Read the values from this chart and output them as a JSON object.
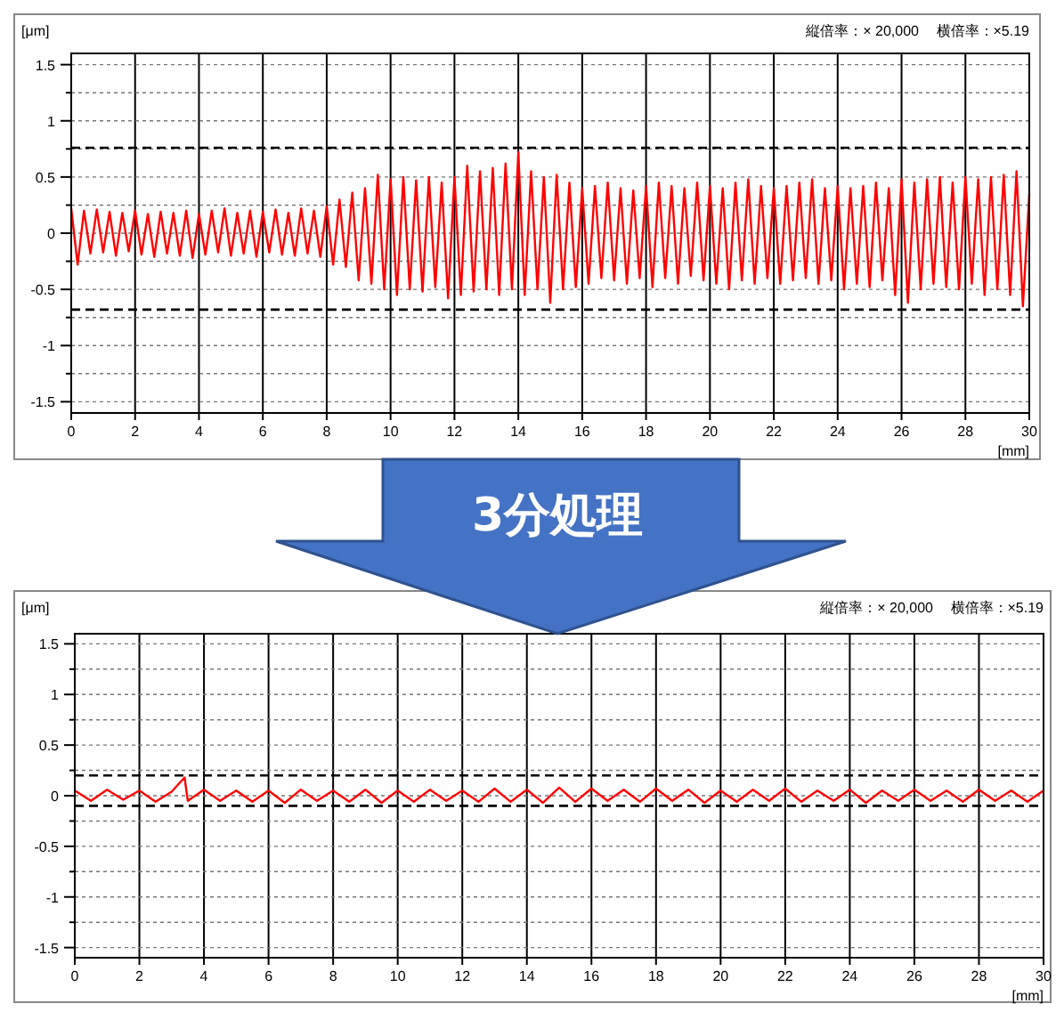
{
  "chart_data": [
    {
      "type": "line",
      "xlabel": "[mm]",
      "ylabel": "[μm]",
      "annotations": [
        "縦倍率：× 20,000",
        "横倍率：×5.19",
        "3分処理"
      ],
      "xlim": [
        0,
        30
      ],
      "xticks": [
        0,
        2,
        4,
        6,
        8,
        10,
        12,
        14,
        16,
        18,
        20,
        22,
        24,
        26,
        28,
        30
      ],
      "ylim": [
        -1.6,
        1.6
      ],
      "yticks": [
        -1.5,
        {
          "value": -1.25,
          "label": null
        },
        -1,
        {
          "value": -0.75,
          "label": null
        },
        -0.5,
        {
          "value": -0.25,
          "label": null
        },
        0,
        {
          "value": 0.25,
          "label": null
        },
        0.5,
        {
          "value": 0.75,
          "label": null
        },
        1,
        {
          "value": 1.25,
          "label": null
        },
        1.5
      ],
      "grid": true,
      "line_style": "solid",
      "ref_lines": [
        {
          "axis": "y",
          "value": 0.76,
          "label": null,
          "line_style": "dashed",
          "color": "#000000"
        },
        {
          "axis": "y",
          "value": -0.68,
          "label": null,
          "line_style": "dashed",
          "color": "#000000"
        }
      ],
      "series": [
        {
          "color": "#ff0000",
          "x": [
            0,
            0.2,
            0.4,
            0.6,
            0.8,
            1,
            1.2,
            1.4,
            1.6,
            1.8,
            2,
            2.2,
            2.4,
            2.6,
            2.8,
            3,
            3.2,
            3.4,
            3.6,
            3.8,
            4,
            4.2,
            4.4,
            4.6,
            4.8,
            5,
            5.2,
            5.4,
            5.6,
            5.8,
            6,
            6.2,
            6.4,
            6.6,
            6.8,
            7,
            7.2,
            7.4,
            7.6,
            7.8,
            8,
            8.2,
            8.4,
            8.6,
            8.8,
            9,
            9.2,
            9.4,
            9.6,
            9.8,
            10,
            10.2,
            10.4,
            10.6,
            10.8,
            11,
            11.2,
            11.4,
            11.6,
            11.8,
            12,
            12.2,
            12.4,
            12.6,
            12.8,
            13,
            13.2,
            13.4,
            13.6,
            13.8,
            14,
            14.2,
            14.4,
            14.6,
            14.8,
            15,
            15.2,
            15.4,
            15.6,
            15.8,
            16,
            16.2,
            16.4,
            16.6,
            16.8,
            17,
            17.2,
            17.4,
            17.6,
            17.8,
            18,
            18.2,
            18.4,
            18.6,
            18.8,
            19,
            19.2,
            19.4,
            19.6,
            19.8,
            20,
            20.2,
            20.4,
            20.6,
            20.8,
            21,
            21.2,
            21.4,
            21.6,
            21.8,
            22,
            22.2,
            22.4,
            22.6,
            22.8,
            23,
            23.2,
            23.4,
            23.6,
            23.8,
            24,
            24.2,
            24.4,
            24.6,
            24.8,
            25,
            25.2,
            25.4,
            25.6,
            25.8,
            26,
            26.2,
            26.4,
            26.6,
            26.8,
            27,
            27.2,
            27.4,
            27.6,
            27.8,
            28,
            28.2,
            28.4,
            28.6,
            28.8,
            29,
            29.2,
            29.4,
            29.6,
            29.8,
            30
          ],
          "values": [
            0.22,
            -0.28,
            0.2,
            -0.18,
            0.21,
            -0.17,
            0.19,
            -0.2,
            0.18,
            -0.16,
            0.2,
            -0.19,
            0.17,
            -0.21,
            0.19,
            -0.18,
            0.18,
            -0.2,
            0.2,
            -0.22,
            0.17,
            -0.19,
            0.2,
            -0.17,
            0.22,
            -0.2,
            0.18,
            -0.18,
            0.2,
            -0.21,
            0.19,
            -0.17,
            0.21,
            -0.19,
            0.18,
            -0.2,
            0.22,
            -0.18,
            0.2,
            -0.21,
            0.24,
            -0.28,
            0.3,
            -0.3,
            0.36,
            -0.42,
            0.4,
            -0.45,
            0.52,
            -0.5,
            0.48,
            -0.55,
            0.5,
            -0.5,
            0.47,
            -0.52,
            0.5,
            -0.48,
            0.45,
            -0.58,
            0.5,
            -0.55,
            0.6,
            -0.52,
            0.55,
            -0.5,
            0.58,
            -0.55,
            0.62,
            -0.5,
            0.72,
            -0.55,
            0.55,
            -0.5,
            0.5,
            -0.62,
            0.52,
            -0.5,
            0.45,
            -0.48,
            0.4,
            -0.45,
            0.42,
            -0.4,
            0.45,
            -0.42,
            0.4,
            -0.45,
            0.38,
            -0.4,
            0.42,
            -0.48,
            0.45,
            -0.4,
            0.42,
            -0.45,
            0.4,
            -0.38,
            0.45,
            -0.42,
            0.42,
            -0.45,
            0.4,
            -0.5,
            0.45,
            -0.42,
            0.48,
            -0.45,
            0.42,
            -0.4,
            0.4,
            -0.45,
            0.42,
            -0.42,
            0.45,
            -0.4,
            0.48,
            -0.45,
            0.4,
            -0.42,
            0.42,
            -0.5,
            0.4,
            -0.45,
            0.42,
            -0.48,
            0.45,
            -0.42,
            0.4,
            -0.55,
            0.48,
            -0.62,
            0.45,
            -0.5,
            0.48,
            -0.45,
            0.5,
            -0.48,
            0.45,
            -0.5,
            0.5,
            -0.45,
            0.48,
            -0.55,
            0.5,
            -0.5,
            0.52,
            -0.55,
            0.55,
            -0.65,
            0.35
          ]
        }
      ]
    },
    {
      "type": "line",
      "xlabel": "[mm]",
      "ylabel": "[μm]",
      "annotations": [
        "縦倍率：× 20,000",
        "横倍率：×5.19"
      ],
      "xlim": [
        0,
        30
      ],
      "xticks": [
        0,
        2,
        4,
        6,
        8,
        10,
        12,
        14,
        16,
        18,
        20,
        22,
        24,
        26,
        28,
        30
      ],
      "ylim": [
        -1.6,
        1.6
      ],
      "yticks": [
        -1.5,
        {
          "value": -1.25,
          "label": null
        },
        -1,
        {
          "value": -0.75,
          "label": null
        },
        -0.5,
        {
          "value": -0.25,
          "label": null
        },
        0,
        {
          "value": 0.25,
          "label": null
        },
        0.5,
        {
          "value": 0.75,
          "label": null
        },
        1,
        {
          "value": 1.25,
          "label": null
        },
        1.5
      ],
      "grid": true,
      "line_style": "solid",
      "ref_lines": [
        {
          "axis": "y",
          "value": 0.2,
          "label": null,
          "line_style": "dashed",
          "color": "#000000"
        },
        {
          "axis": "y",
          "value": -0.1,
          "label": null,
          "line_style": "dashed",
          "color": "#000000"
        }
      ],
      "series": [
        {
          "color": "#ff0000",
          "x": [
            0,
            0.5,
            1,
            1.5,
            2,
            2.5,
            3,
            3.4,
            3.5,
            4,
            4.5,
            5,
            5.5,
            6,
            6.5,
            7,
            7.5,
            8,
            8.5,
            9,
            9.5,
            10,
            10.5,
            11,
            11.5,
            12,
            12.5,
            13,
            13.5,
            14,
            14.5,
            15,
            15.5,
            16,
            16.5,
            17,
            17.5,
            18,
            18.5,
            19,
            19.5,
            20,
            20.5,
            21,
            21.5,
            22,
            22.5,
            23,
            23.5,
            24,
            24.5,
            25,
            25.5,
            26,
            26.5,
            27,
            27.5,
            28,
            28.5,
            29,
            29.5,
            30
          ],
          "values": [
            0.05,
            -0.05,
            0.06,
            -0.04,
            0.05,
            -0.06,
            0.04,
            0.18,
            -0.05,
            0.06,
            -0.05,
            0.05,
            -0.06,
            0.05,
            -0.07,
            0.06,
            -0.05,
            0.05,
            -0.06,
            0.06,
            -0.07,
            0.05,
            -0.06,
            0.06,
            -0.05,
            0.05,
            -0.06,
            0.07,
            -0.06,
            0.06,
            -0.07,
            0.08,
            -0.06,
            0.07,
            -0.05,
            0.06,
            -0.06,
            0.07,
            -0.05,
            0.06,
            -0.07,
            0.05,
            -0.06,
            0.06,
            -0.05,
            0.07,
            -0.06,
            0.05,
            -0.05,
            0.06,
            -0.07,
            0.05,
            -0.05,
            0.06,
            -0.05,
            0.05,
            -0.06,
            0.06,
            -0.05,
            0.05,
            -0.06,
            0.05
          ]
        }
      ]
    }
  ]
}
